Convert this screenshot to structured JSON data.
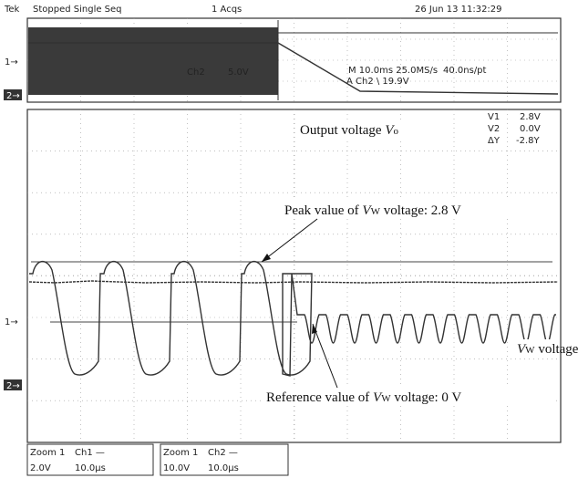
{
  "header": {
    "brand": "Tek",
    "status": "Stopped Single Seq",
    "acqs": "1 Acqs",
    "timestamp": "26 Jun 13 11:32:29"
  },
  "overview": {
    "channel": "Ch2",
    "scale": "5.0V",
    "timebase": "M 10.0ms 25.0MS/s",
    "resolution": "40.0ns/pt",
    "trigger": "A Ch2 \\ 19.9V"
  },
  "markers": {
    "ch1_top": "1",
    "ch2_top": "2",
    "ch1_main": "1",
    "ch2_main": "2"
  },
  "cursors": {
    "v1_label": "V1",
    "v1_value": "2.8V",
    "v2_label": "V2",
    "v2_value": "0.0V",
    "dv_label": "ΔY",
    "dv_value": "-2.8Y"
  },
  "annotations": {
    "output": {
      "text": "Output voltage ",
      "symbol": "V",
      "subscript": "o"
    },
    "peak": {
      "prefix": "Peak value of ",
      "symbol": "V",
      "subscript": "W",
      "suffix": " voltage:  2.8 V"
    },
    "vw": {
      "symbol": "V",
      "subscript": "W",
      "suffix": " voltage"
    },
    "reference": {
      "prefix": "Reference value of ",
      "symbol": "V",
      "subscript": "W",
      "suffix": " voltage:  0 V"
    }
  },
  "footer": {
    "zoom1": {
      "title": "Zoom 1",
      "channel": "Ch1 —",
      "scale": "2.0V",
      "time": "10.0µs"
    },
    "zoom2": {
      "title": "Zoom 1",
      "channel": "Ch2 —",
      "scale": "10.0V",
      "time": "10.0µs"
    }
  }
}
